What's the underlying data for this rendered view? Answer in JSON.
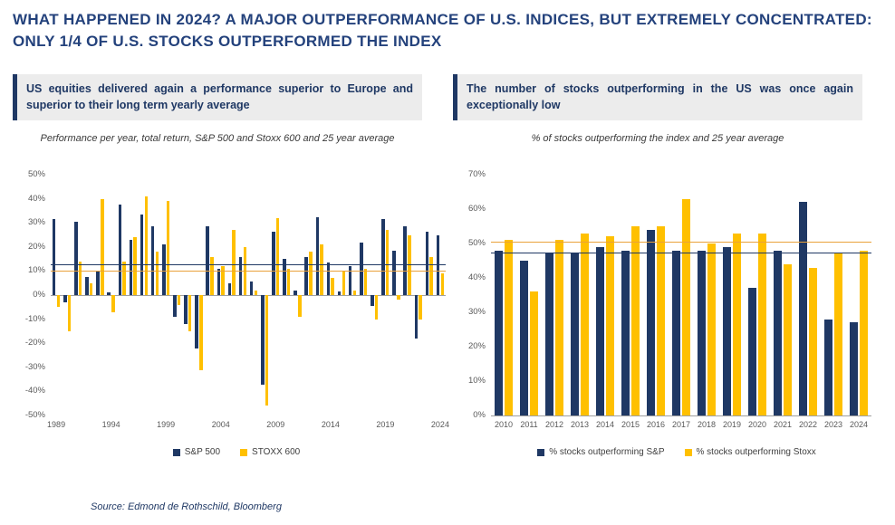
{
  "page": {
    "title": "WHAT HAPPENED IN 2024? A MAJOR OUTPERFORMANCE OF U.S. INDICES, BUT EXTREMELY CONCENTRATED: ONLY 1/4 OF U.S. STOCKS OUTPERFORMED THE INDEX",
    "source": "Source: Edmond de Rothschild, Bloomberg"
  },
  "colors": {
    "navy": "#1F3864",
    "yellow": "#FFC000",
    "title_blue": "#24427C"
  },
  "left_panel": {
    "headline": "US equities delivered again a performance superior to Europe and superior to their long term yearly average",
    "subtitle": "Performance per year, total return, S&P 500 and Stoxx 600 and 25 year average"
  },
  "right_panel": {
    "headline": "The number of stocks outperforming in the US was once again exceptionally low",
    "subtitle": "% of stocks outperforming the index and 25 year average"
  },
  "chart_data": [
    {
      "type": "bar",
      "title": "Performance per year, total return, S&P 500 and Stoxx 600 and 25 year average",
      "categories": [
        "1989",
        "1990",
        "1991",
        "1992",
        "1993",
        "1994",
        "1995",
        "1996",
        "1997",
        "1998",
        "1999",
        "2000",
        "2001",
        "2002",
        "2003",
        "2004",
        "2005",
        "2006",
        "2007",
        "2008",
        "2009",
        "2010",
        "2011",
        "2012",
        "2013",
        "2014",
        "2015",
        "2016",
        "2017",
        "2018",
        "2019",
        "2020",
        "2021",
        "2022",
        "2023",
        "2024"
      ],
      "series": [
        {
          "name": "S&P 500",
          "color": "#1F3864",
          "values": [
            31.7,
            -3.1,
            30.5,
            7.6,
            10.1,
            1.3,
            37.6,
            23.0,
            33.4,
            28.6,
            21.0,
            -9.1,
            -11.9,
            -22.1,
            28.7,
            10.9,
            4.9,
            15.8,
            5.5,
            -37.0,
            26.5,
            15.1,
            2.1,
            16.0,
            32.4,
            13.7,
            1.4,
            12.0,
            21.8,
            -4.4,
            31.5,
            18.4,
            28.7,
            -18.1,
            26.3,
            25.0
          ]
        },
        {
          "name": "STOXX 600",
          "color": "#FFC000",
          "values": [
            -5,
            -15,
            14,
            5,
            40,
            -7,
            14,
            24,
            41,
            18,
            39,
            -4,
            -15,
            -31,
            16,
            12,
            27,
            20,
            2,
            -46,
            32,
            11,
            -9,
            18,
            21,
            7,
            10,
            2,
            11,
            -10,
            27,
            -2,
            25,
            -10,
            16,
            9
          ]
        }
      ],
      "ylim": [
        -50,
        50
      ],
      "ytick_step": 10,
      "xticks": [
        "1989",
        "1994",
        "1999",
        "2004",
        "2009",
        "2014",
        "2019",
        "2024"
      ],
      "ref_lines": [
        {
          "name": "sp500-25y-average-line",
          "value": 13,
          "color": "#1F3864"
        },
        {
          "name": "stoxx600-25y-average-line",
          "value": 10,
          "color": "#E9A23B"
        }
      ],
      "grid": false,
      "legend_position": "bottom"
    },
    {
      "type": "bar",
      "title": "% of stocks outperforming the index and 25 year average",
      "categories": [
        "2010",
        "2011",
        "2012",
        "2013",
        "2014",
        "2015",
        "2016",
        "2017",
        "2018",
        "2019",
        "2020",
        "2021",
        "2022",
        "2023",
        "2024"
      ],
      "series": [
        {
          "name": "% stocks outperforming S&P",
          "color": "#1F3864",
          "values": [
            48,
            45,
            47,
            47,
            49,
            48,
            54,
            48,
            48,
            49,
            37,
            48,
            62,
            28,
            27
          ]
        },
        {
          "name": "% stocks outperforming Stoxx",
          "color": "#FFC000",
          "values": [
            51,
            36,
            51,
            53,
            52,
            55,
            55,
            63,
            50,
            53,
            53,
            44,
            43,
            47,
            48
          ]
        }
      ],
      "ylim": [
        0,
        70
      ],
      "ytick_step": 10,
      "xticks": [
        "2010",
        "2011",
        "2012",
        "2013",
        "2014",
        "2015",
        "2016",
        "2017",
        "2018",
        "2019",
        "2020",
        "2021",
        "2022",
        "2023",
        "2024"
      ],
      "ref_lines": [
        {
          "name": "sp-outperformers-25y-average-line",
          "value": 47.5,
          "color": "#1F3864"
        },
        {
          "name": "stoxx-outperformers-25y-average-line",
          "value": 50.5,
          "color": "#E9A23B"
        }
      ],
      "grid": false,
      "legend_position": "bottom"
    }
  ]
}
